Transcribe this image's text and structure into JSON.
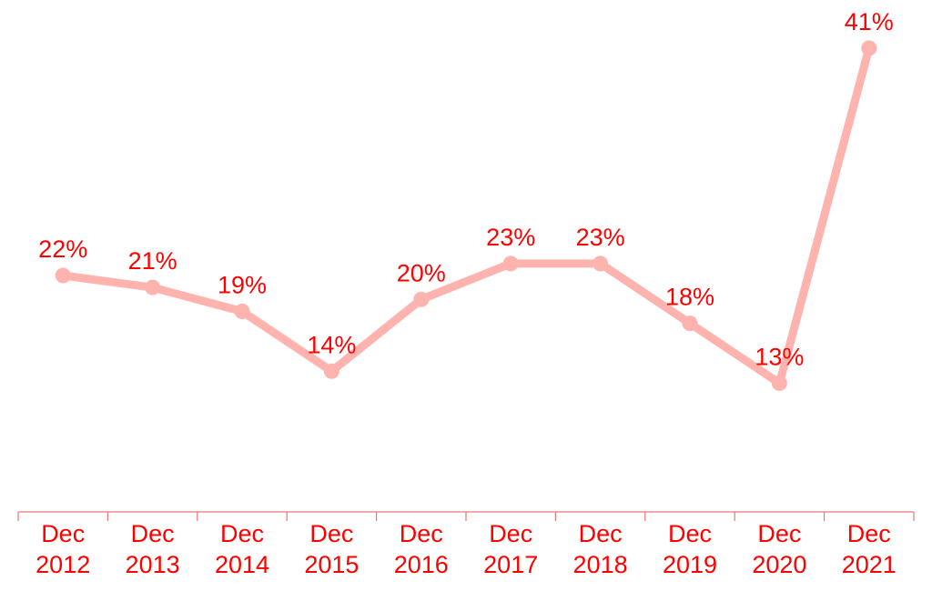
{
  "chart_data": {
    "type": "line",
    "categories": [
      "Dec 2012",
      "Dec 2013",
      "Dec 2014",
      "Dec 2015",
      "Dec 2016",
      "Dec 2017",
      "Dec 2018",
      "Dec 2019",
      "Dec 2020",
      "Dec 2021"
    ],
    "category_lines": [
      [
        "Dec",
        "2012"
      ],
      [
        "Dec",
        "2013"
      ],
      [
        "Dec",
        "2014"
      ],
      [
        "Dec",
        "2015"
      ],
      [
        "Dec",
        "2016"
      ],
      [
        "Dec",
        "2017"
      ],
      [
        "Dec",
        "2018"
      ],
      [
        "Dec",
        "2019"
      ],
      [
        "Dec",
        "2020"
      ],
      [
        "Dec",
        "2021"
      ]
    ],
    "values": [
      22,
      21,
      19,
      14,
      20,
      23,
      23,
      18,
      13,
      41
    ],
    "data_labels": [
      "22%",
      "21%",
      "19%",
      "14%",
      "20%",
      "23%",
      "23%",
      "18%",
      "13%",
      "41%"
    ],
    "value_unit": "%",
    "y_axis_visible": false,
    "grid": false,
    "legend": "none",
    "colors": {
      "line": "#ffb3ae",
      "label_text": "#ff0000",
      "axis": "#e87878"
    }
  }
}
